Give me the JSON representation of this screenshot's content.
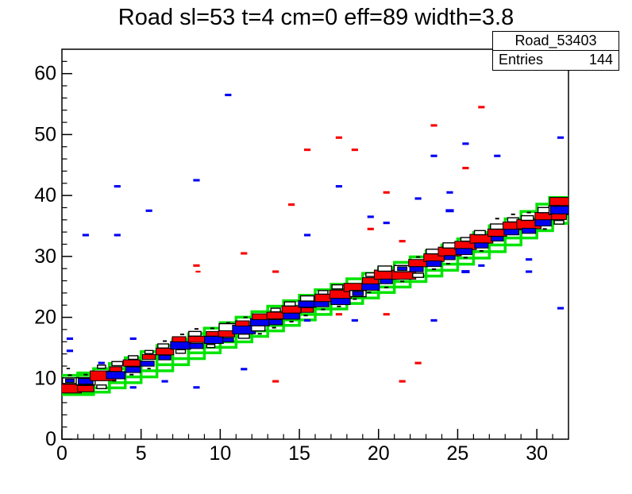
{
  "title": "Road sl=53 t=4 cm=0 eff=89 width=3.8",
  "stats": {
    "name": "Road_53403",
    "entries_label": "Entries",
    "entries_value": "144"
  },
  "colors": {
    "road_green": "#00e400",
    "hit_red": "#f70000",
    "hit_blue": "#0000f2",
    "hit_black": "#000000",
    "hollow_fill": "#ffffff",
    "frame": "#000000",
    "background": "#ffffff"
  },
  "chart_data": {
    "type": "scatter",
    "subtype": "root-2d-box-histogram",
    "title": "Road sl=53 t=4 cm=0 eff=89 width=3.8",
    "xlabel": "",
    "ylabel": "",
    "xlim": [
      0,
      32
    ],
    "ylim": [
      0,
      64
    ],
    "x_major_ticks": [
      0,
      5,
      10,
      15,
      20,
      25,
      30
    ],
    "x_minor_step": 1,
    "y_major_ticks": [
      0,
      10,
      20,
      30,
      40,
      50,
      60
    ],
    "y_minor_step": 2,
    "grid": false,
    "legend_position": "none",
    "stats_box": {
      "name": "Road_53403",
      "entries": 144
    },
    "road_box_w": 2,
    "road_box_h": 3.15,
    "road_boxes": [
      [
        1,
        8.9
      ],
      [
        2,
        9.3
      ],
      [
        3,
        10.0
      ],
      [
        4,
        10.85
      ],
      [
        5,
        11.8
      ],
      [
        6,
        12.8
      ],
      [
        7,
        13.8
      ],
      [
        8,
        14.8
      ],
      [
        9,
        15.75
      ],
      [
        10,
        16.65
      ],
      [
        11,
        17.55
      ],
      [
        12,
        18.45
      ],
      [
        13,
        19.35
      ],
      [
        14,
        20.25
      ],
      [
        15,
        21.15
      ],
      [
        16,
        22.05
      ],
      [
        17,
        22.95
      ],
      [
        18,
        23.85
      ],
      [
        19,
        24.75
      ],
      [
        20,
        25.65
      ],
      [
        21,
        26.55
      ],
      [
        22,
        27.45
      ],
      [
        23,
        28.35
      ],
      [
        24,
        29.3
      ],
      [
        25,
        30.3
      ],
      [
        26,
        31.3
      ],
      [
        27,
        32.35
      ],
      [
        28,
        33.45
      ],
      [
        29,
        34.6
      ],
      [
        30,
        35.8
      ],
      [
        31,
        37.0
      ],
      [
        31.8,
        38.1
      ]
    ],
    "hits": [
      [
        "h",
        0.5,
        9.6,
        0.55
      ],
      [
        "b",
        0.5,
        9.6,
        0.32
      ],
      [
        "r",
        0.5,
        8.3,
        0.85
      ],
      [
        "k",
        0.5,
        10.5,
        0.15
      ],
      [
        "k",
        0.4,
        11.6,
        0.13
      ],
      [
        "h",
        1.5,
        9.5,
        0.7
      ],
      [
        "b",
        1.5,
        9.5,
        0.55
      ],
      [
        "r",
        1.5,
        8.3,
        0.6
      ],
      [
        "k",
        1.5,
        10.6,
        0.15
      ],
      [
        "h",
        2.5,
        8.6,
        0.35
      ],
      [
        "r",
        2.6,
        10.4,
        0.95
      ],
      [
        "h",
        2.5,
        11.9,
        0.3
      ],
      [
        "k",
        2.4,
        12.6,
        0.13
      ],
      [
        "b",
        3.4,
        10.5,
        0.7
      ],
      [
        "r",
        3.4,
        11.5,
        0.45
      ],
      [
        "h",
        3.5,
        12.4,
        0.4
      ],
      [
        "k",
        3.3,
        9.6,
        0.15
      ],
      [
        "b",
        4.5,
        11.4,
        0.55
      ],
      [
        "r",
        4.4,
        12.5,
        0.62
      ],
      [
        "h",
        4.5,
        13.4,
        0.35
      ],
      [
        "k",
        4.4,
        10.6,
        0.15
      ],
      [
        "b",
        5.4,
        12.4,
        0.5
      ],
      [
        "r",
        5.5,
        13.5,
        0.48
      ],
      [
        "h",
        5.5,
        14.3,
        0.3
      ],
      [
        "k",
        5.5,
        11.6,
        0.13
      ],
      [
        "b",
        6.5,
        13.4,
        0.45
      ],
      [
        "r",
        6.5,
        14.4,
        0.65
      ],
      [
        "h",
        6.4,
        15.3,
        0.4
      ],
      [
        "k",
        6.5,
        16.1,
        0.15
      ],
      [
        "h",
        7.5,
        14.4,
        0.35
      ],
      [
        "b",
        7.5,
        15.4,
        0.75
      ],
      [
        "r",
        7.4,
        16.4,
        0.5
      ],
      [
        "k",
        7.6,
        17.2,
        0.15
      ],
      [
        "b",
        8.5,
        15.3,
        0.5
      ],
      [
        "r",
        8.5,
        16.4,
        0.6
      ],
      [
        "h",
        8.4,
        17.3,
        0.45
      ],
      [
        "k",
        8.5,
        18.1,
        0.15
      ],
      [
        "h",
        9.4,
        15.3,
        0.3
      ],
      [
        "b",
        9.6,
        16.3,
        0.7
      ],
      [
        "r",
        9.5,
        17.3,
        0.45
      ],
      [
        "k",
        9.5,
        18.2,
        0.15
      ],
      [
        "h",
        10.7,
        18.2,
        0.9
      ],
      [
        "b",
        10.5,
        16.3,
        0.4
      ],
      [
        "r",
        10.4,
        17.3,
        0.6
      ],
      [
        "k",
        10.5,
        19.1,
        0.15
      ],
      [
        "h",
        11.5,
        16.9,
        0.4
      ],
      [
        "b",
        11.5,
        18.0,
        0.85
      ],
      [
        "r",
        11.4,
        19.0,
        0.5
      ],
      [
        "k",
        11.6,
        20.0,
        0.15
      ],
      [
        "h",
        12.4,
        18.2,
        0.5
      ],
      [
        "b",
        12.5,
        19.2,
        0.7
      ],
      [
        "r",
        12.5,
        20.1,
        0.55
      ],
      [
        "k",
        12.5,
        17.3,
        0.15
      ],
      [
        "b",
        13.5,
        19.2,
        0.5
      ],
      [
        "r",
        13.5,
        20.3,
        0.65
      ],
      [
        "h",
        13.5,
        21.2,
        0.35
      ],
      [
        "k",
        13.4,
        18.3,
        0.15
      ],
      [
        "b",
        14.5,
        20.2,
        0.6
      ],
      [
        "r",
        14.5,
        21.3,
        0.7
      ],
      [
        "h",
        14.4,
        22.2,
        0.4
      ],
      [
        "k",
        14.5,
        19.3,
        0.15
      ],
      [
        "b",
        15.5,
        22.2,
        0.65
      ],
      [
        "r",
        15.5,
        21.2,
        0.45
      ],
      [
        "h",
        15.5,
        23.1,
        0.5
      ],
      [
        "k",
        15.4,
        20.3,
        0.15
      ],
      [
        "b",
        16.4,
        22.2,
        0.55
      ],
      [
        "r",
        16.6,
        23.2,
        0.72
      ],
      [
        "h",
        16.5,
        24.1,
        0.35
      ],
      [
        "k",
        16.5,
        21.3,
        0.15
      ],
      [
        "b",
        17.6,
        22.7,
        0.72
      ],
      [
        "r",
        17.6,
        23.8,
        0.8
      ],
      [
        "h",
        17.4,
        25.0,
        0.4
      ],
      [
        "k",
        17.5,
        21.8,
        0.15
      ],
      [
        "r",
        18.5,
        24.9,
        0.8
      ],
      [
        "h",
        18.7,
        23.9,
        0.6
      ],
      [
        "b",
        18.7,
        23.9,
        0.4
      ],
      [
        "k",
        18.5,
        23.0,
        0.15
      ],
      [
        "b",
        19.5,
        25.0,
        0.65
      ],
      [
        "r",
        19.5,
        26.0,
        0.6
      ],
      [
        "h",
        19.5,
        27.0,
        0.35
      ],
      [
        "k",
        19.4,
        24.1,
        0.15
      ],
      [
        "r",
        20.5,
        27.0,
        0.9
      ],
      [
        "b",
        20.5,
        25.9,
        0.45
      ],
      [
        "h",
        20.4,
        28.0,
        0.5
      ],
      [
        "k",
        20.5,
        24.9,
        0.15
      ],
      [
        "r",
        21.6,
        27.0,
        0.88
      ],
      [
        "h",
        21.5,
        28.0,
        0.6
      ],
      [
        "b",
        21.5,
        28.0,
        0.35
      ],
      [
        "k",
        21.5,
        25.9,
        0.15
      ],
      [
        "r",
        22.5,
        28.9,
        0.7
      ],
      [
        "b",
        22.4,
        27.9,
        0.5
      ],
      [
        "h",
        22.5,
        26.9,
        0.4
      ],
      [
        "k",
        22.5,
        29.9,
        0.15
      ],
      [
        "r",
        23.5,
        29.8,
        0.75
      ],
      [
        "b",
        23.5,
        28.8,
        0.55
      ],
      [
        "h",
        23.4,
        30.8,
        0.45
      ],
      [
        "k",
        23.5,
        27.9,
        0.15
      ],
      [
        "r",
        24.5,
        30.8,
        0.85
      ],
      [
        "b",
        24.5,
        29.8,
        0.4
      ],
      [
        "h",
        24.5,
        31.8,
        0.5
      ],
      [
        "k",
        24.4,
        28.8,
        0.15
      ],
      [
        "r",
        25.5,
        31.8,
        0.8
      ],
      [
        "b",
        25.4,
        30.8,
        0.6
      ],
      [
        "h",
        25.5,
        32.8,
        0.35
      ],
      [
        "k",
        25.5,
        29.8,
        0.15
      ],
      [
        "r",
        26.5,
        32.9,
        0.85
      ],
      [
        "b",
        26.5,
        31.8,
        0.5
      ],
      [
        "h",
        26.4,
        33.9,
        0.4
      ],
      [
        "k",
        26.5,
        30.9,
        0.15
      ],
      [
        "r",
        27.5,
        33.9,
        0.7
      ],
      [
        "b",
        27.5,
        32.9,
        0.45
      ],
      [
        "h",
        27.5,
        34.9,
        0.5
      ],
      [
        "k",
        27.5,
        36.2,
        0.15
      ],
      [
        "r",
        28.5,
        35.0,
        0.75
      ],
      [
        "b",
        28.4,
        34.0,
        0.55
      ],
      [
        "h",
        28.5,
        36.0,
        0.4
      ],
      [
        "k",
        28.5,
        36.9,
        0.15
      ],
      [
        "r",
        29.5,
        35.3,
        0.9
      ],
      [
        "b",
        29.5,
        34.2,
        0.5
      ],
      [
        "h",
        29.4,
        36.3,
        0.45
      ],
      [
        "k",
        29.5,
        37.2,
        0.15
      ],
      [
        "r",
        30.5,
        36.6,
        0.72
      ],
      [
        "b",
        30.4,
        35.5,
        0.6
      ],
      [
        "h",
        30.5,
        37.6,
        0.5
      ],
      [
        "k",
        30.5,
        34.5,
        0.15
      ],
      [
        "r",
        31.5,
        39.0,
        0.8
      ],
      [
        "h",
        31.5,
        37.6,
        0.85
      ],
      [
        "b",
        31.5,
        37.6,
        0.75
      ],
      [
        "h",
        31.4,
        35.6,
        0.35
      ],
      [
        "k",
        31.3,
        38.3,
        0.15
      ],
      [
        "r",
        31.4,
        36.5,
        0.55
      ],
      [
        "bd",
        10.5,
        56.5,
        0.24
      ],
      [
        "bd",
        8.5,
        42.5,
        0.24
      ],
      [
        "bd",
        3.5,
        41.5,
        0.24
      ],
      [
        "bd",
        5.5,
        37.5,
        0.24
      ],
      [
        "bd",
        1.5,
        33.5,
        0.24
      ],
      [
        "bd",
        3.5,
        33.5,
        0.24
      ],
      [
        "bd",
        15.5,
        33.5,
        0.24
      ],
      [
        "bd",
        31.5,
        49.5,
        0.24
      ],
      [
        "bd",
        25.5,
        48.5,
        0.24
      ],
      [
        "bd",
        23.5,
        46.5,
        0.24
      ],
      [
        "bd",
        27.5,
        46.5,
        0.24
      ],
      [
        "bd",
        17.5,
        41.5,
        0.24
      ],
      [
        "bd",
        24.5,
        40.5,
        0.24
      ],
      [
        "bd",
        22.5,
        39.5,
        0.24
      ],
      [
        "bd",
        24.5,
        37.5,
        0.3
      ],
      [
        "bd",
        19.5,
        36.5,
        0.24
      ],
      [
        "bd",
        20.5,
        35.5,
        0.24
      ],
      [
        "bd",
        29.5,
        29.5,
        0.24
      ],
      [
        "bd",
        26.5,
        28.5,
        0.24
      ],
      [
        "bd",
        25.5,
        27.5,
        0.3
      ],
      [
        "bd",
        29.5,
        27.5,
        0.24
      ],
      [
        "bd",
        31.5,
        21.5,
        0.24
      ],
      [
        "bd",
        18.5,
        19.5,
        0.24
      ],
      [
        "bd",
        23.5,
        19.5,
        0.24
      ],
      [
        "bd",
        15.5,
        19.5,
        0.24
      ],
      [
        "bd",
        0.5,
        16.5,
        0.24
      ],
      [
        "bd",
        4.5,
        16.5,
        0.24
      ],
      [
        "bd",
        0.5,
        14.5,
        0.24
      ],
      [
        "bd",
        2.5,
        12.5,
        0.24
      ],
      [
        "bd",
        11.5,
        11.5,
        0.24
      ],
      [
        "bd",
        4.5,
        8.5,
        0.24
      ],
      [
        "bd",
        6.5,
        9.5,
        0.24
      ],
      [
        "bd",
        8.5,
        8.5,
        0.24
      ],
      [
        "rd",
        15.5,
        47.5,
        0.24
      ],
      [
        "rd",
        14.5,
        38.5,
        0.24
      ],
      [
        "rd",
        26.5,
        54.5,
        0.24
      ],
      [
        "rd",
        23.5,
        51.5,
        0.24
      ],
      [
        "rd",
        17.5,
        49.5,
        0.24
      ],
      [
        "rd",
        18.5,
        47.5,
        0.24
      ],
      [
        "rd",
        25.5,
        44.5,
        0.24
      ],
      [
        "rd",
        20.5,
        40.5,
        0.24
      ],
      [
        "rd",
        19.5,
        34.5,
        0.24
      ],
      [
        "rd",
        21.5,
        32.5,
        0.24
      ],
      [
        "rd",
        17.5,
        20.5,
        0.24
      ],
      [
        "rd",
        20.5,
        20.5,
        0.24
      ],
      [
        "rd",
        22.5,
        12.5,
        0.24
      ],
      [
        "rd",
        21.5,
        9.5,
        0.24
      ],
      [
        "rd",
        11.5,
        30.5,
        0.24
      ],
      [
        "rd",
        8.5,
        28.5,
        0.24
      ],
      [
        "rd",
        8.6,
        27.5,
        0.18
      ],
      [
        "rd",
        13.5,
        27.5,
        0.24
      ],
      [
        "rd",
        13.5,
        9.5,
        0.24
      ]
    ]
  }
}
